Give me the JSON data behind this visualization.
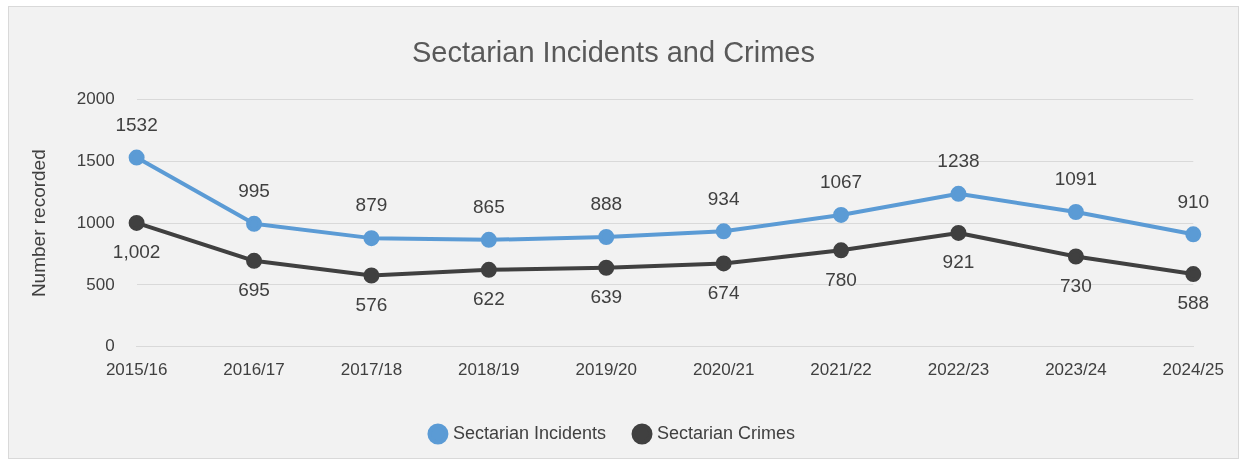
{
  "chart_data": {
    "type": "line",
    "title": "Sectarian Incidents and Crimes",
    "ylabel": "Number recorded",
    "categories": [
      "2015/16",
      "2016/17",
      "2017/18",
      "2018/19",
      "2019/20",
      "2020/21",
      "2021/22",
      "2022/23",
      "2023/24",
      "2024/25"
    ],
    "series": [
      {
        "name": "Sectarian Incidents",
        "color": "#5b9bd5",
        "values": [
          1532,
          995,
          879,
          865,
          888,
          934,
          1067,
          1238,
          1091,
          910
        ],
        "value_labels": [
          "1532",
          "995",
          "879",
          "865",
          "888",
          "934",
          "1067",
          "1238",
          "1091",
          "910"
        ]
      },
      {
        "name": "Sectarian Crimes",
        "color": "#404040",
        "values": [
          1002,
          695,
          576,
          622,
          639,
          674,
          780,
          921,
          730,
          588
        ],
        "value_labels": [
          "1,002",
          "695",
          "576",
          "622",
          "639",
          "674",
          "780",
          "921",
          "730",
          "588"
        ]
      }
    ],
    "ylim": [
      0,
      2000
    ],
    "yticks": [
      0,
      500,
      1000,
      1500,
      2000
    ],
    "grid": "y",
    "legend": "bottom",
    "marker": "circle",
    "line_style": "solid"
  }
}
